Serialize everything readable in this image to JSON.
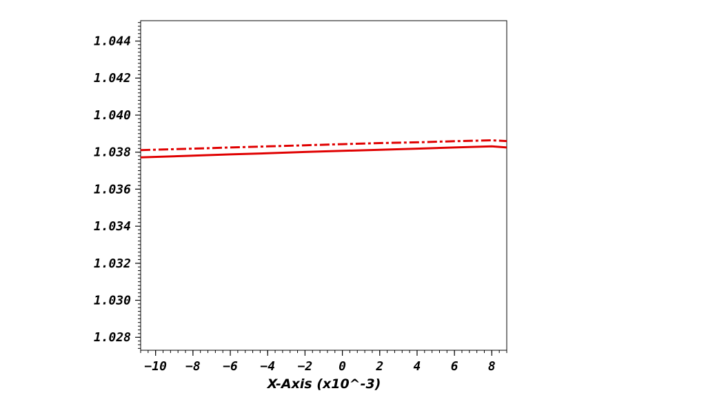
{
  "chart_data": {
    "type": "line",
    "title": "",
    "xlabel": "X-Axis (x10^-3)",
    "ylabel": "",
    "xlim": [
      -10.8,
      8.8
    ],
    "ylim": [
      1.0273,
      1.0451
    ],
    "x_ticks": [
      -10,
      -8,
      -6,
      -4,
      -2,
      0,
      2,
      4,
      6,
      8
    ],
    "x_tick_labels": [
      "−10",
      "−8",
      "−6",
      "−4",
      "−2",
      "0",
      "2",
      "4",
      "6",
      "8"
    ],
    "y_ticks": [
      1.028,
      1.03,
      1.032,
      1.034,
      1.036,
      1.038,
      1.04,
      1.042,
      1.044
    ],
    "y_tick_labels": [
      "1.028",
      "1.030",
      "1.032",
      "1.034",
      "1.036",
      "1.038",
      "1.040",
      "1.042",
      "1.044"
    ],
    "grid": false,
    "legend": "none",
    "series": [
      {
        "style": "solid",
        "color": "#e00000",
        "x": [
          -10.8,
          -8,
          -6,
          -4,
          -2,
          0,
          2,
          4,
          6,
          8,
          8.8
        ],
        "y": [
          1.03772,
          1.03781,
          1.03788,
          1.03794,
          1.03801,
          1.03807,
          1.03813,
          1.03819,
          1.03825,
          1.03831,
          1.03825
        ]
      },
      {
        "style": "dash-dot",
        "color": "#e00000",
        "x": [
          -10.8,
          -8,
          -6,
          -4,
          -2,
          0,
          2,
          4,
          6,
          8,
          8.8
        ],
        "y": [
          1.03811,
          1.03819,
          1.03825,
          1.03831,
          1.03837,
          1.03843,
          1.03849,
          1.03853,
          1.03859,
          1.03864,
          1.0386
        ]
      }
    ]
  }
}
